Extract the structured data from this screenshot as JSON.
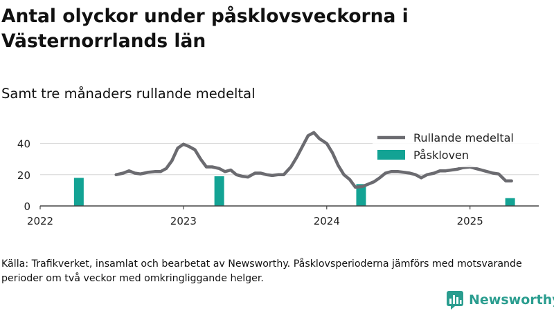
{
  "title": "Antal olyckor under påsklovsveckorna i Västernorrlands län",
  "subtitle": "Samt tre månaders rullande medeltal",
  "source": "Källa: Trafikverket, insamlat och bearbetat av Newsworthy. Påsklovsperioderna jämförs med motsvarande perioder om två veckor med omkringliggande helger.",
  "brand": {
    "name": "Newsworthy",
    "color": "#2a9d8f",
    "icon": "newsworthy-logo-icon"
  },
  "colors": {
    "line": "#6b6b70",
    "bar": "#13a394",
    "grid": "#d6d6d6",
    "axis": "#444444"
  },
  "chart_data": {
    "type": "line",
    "title": "Antal olyckor under påsklovsveckorna i Västernorrlands län",
    "subtitle": "Samt tre månaders rullande medeltal",
    "xlabel": "",
    "ylabel": "",
    "x_ticks": [
      "2022",
      "2023",
      "2024",
      "2025"
    ],
    "x_range": [
      2022.0,
      2025.48
    ],
    "y_ticks": [
      0,
      20,
      40
    ],
    "ylim": [
      0,
      50
    ],
    "grid": true,
    "legend_position": "top-right",
    "legend": [
      "Rullande medeltal",
      "Påskloven"
    ],
    "series": [
      {
        "name": "Rullande medeltal",
        "type": "line",
        "x": [
          2022.53,
          2022.58,
          2022.62,
          2022.66,
          2022.7,
          2022.75,
          2022.8,
          2022.84,
          2022.88,
          2022.92,
          2022.96,
          2023.0,
          2023.04,
          2023.08,
          2023.12,
          2023.16,
          2023.2,
          2023.25,
          2023.29,
          2023.33,
          2023.37,
          2023.41,
          2023.45,
          2023.5,
          2023.54,
          2023.58,
          2023.62,
          2023.66,
          2023.7,
          2023.75,
          2023.79,
          2023.83,
          2023.87,
          2023.91,
          2023.95,
          2024.0,
          2024.04,
          2024.08,
          2024.12,
          2024.16,
          2024.2,
          2024.25,
          2024.29,
          2024.33,
          2024.37,
          2024.41,
          2024.45,
          2024.5,
          2024.54,
          2024.58,
          2024.62,
          2024.66,
          2024.7,
          2024.75,
          2024.79,
          2024.83,
          2024.87,
          2024.91,
          2024.95,
          2025.0,
          2025.04,
          2025.08,
          2025.12,
          2025.16,
          2025.2,
          2025.25,
          2025.29
        ],
        "values": [
          20,
          21,
          22.5,
          21,
          20.5,
          21.5,
          22,
          22,
          24,
          29,
          37,
          39.5,
          38,
          36,
          30,
          25,
          25,
          24,
          22,
          23,
          20,
          19,
          18.5,
          21,
          21,
          20,
          19.5,
          20,
          20,
          25,
          31,
          38,
          45,
          47,
          43,
          40,
          34,
          26,
          20,
          17,
          12,
          12.5,
          14,
          15.5,
          18,
          21,
          22,
          22,
          21.5,
          21,
          20,
          18,
          20,
          21,
          22.5,
          22.5,
          23,
          23.5,
          24.5,
          25,
          24,
          23,
          22,
          21,
          20.5,
          16,
          16
        ]
      },
      {
        "name": "Påskloven",
        "type": "bar",
        "x": [
          2022.27,
          2023.25,
          2024.24,
          2025.28
        ],
        "values": [
          18,
          19,
          14,
          5
        ]
      }
    ]
  }
}
